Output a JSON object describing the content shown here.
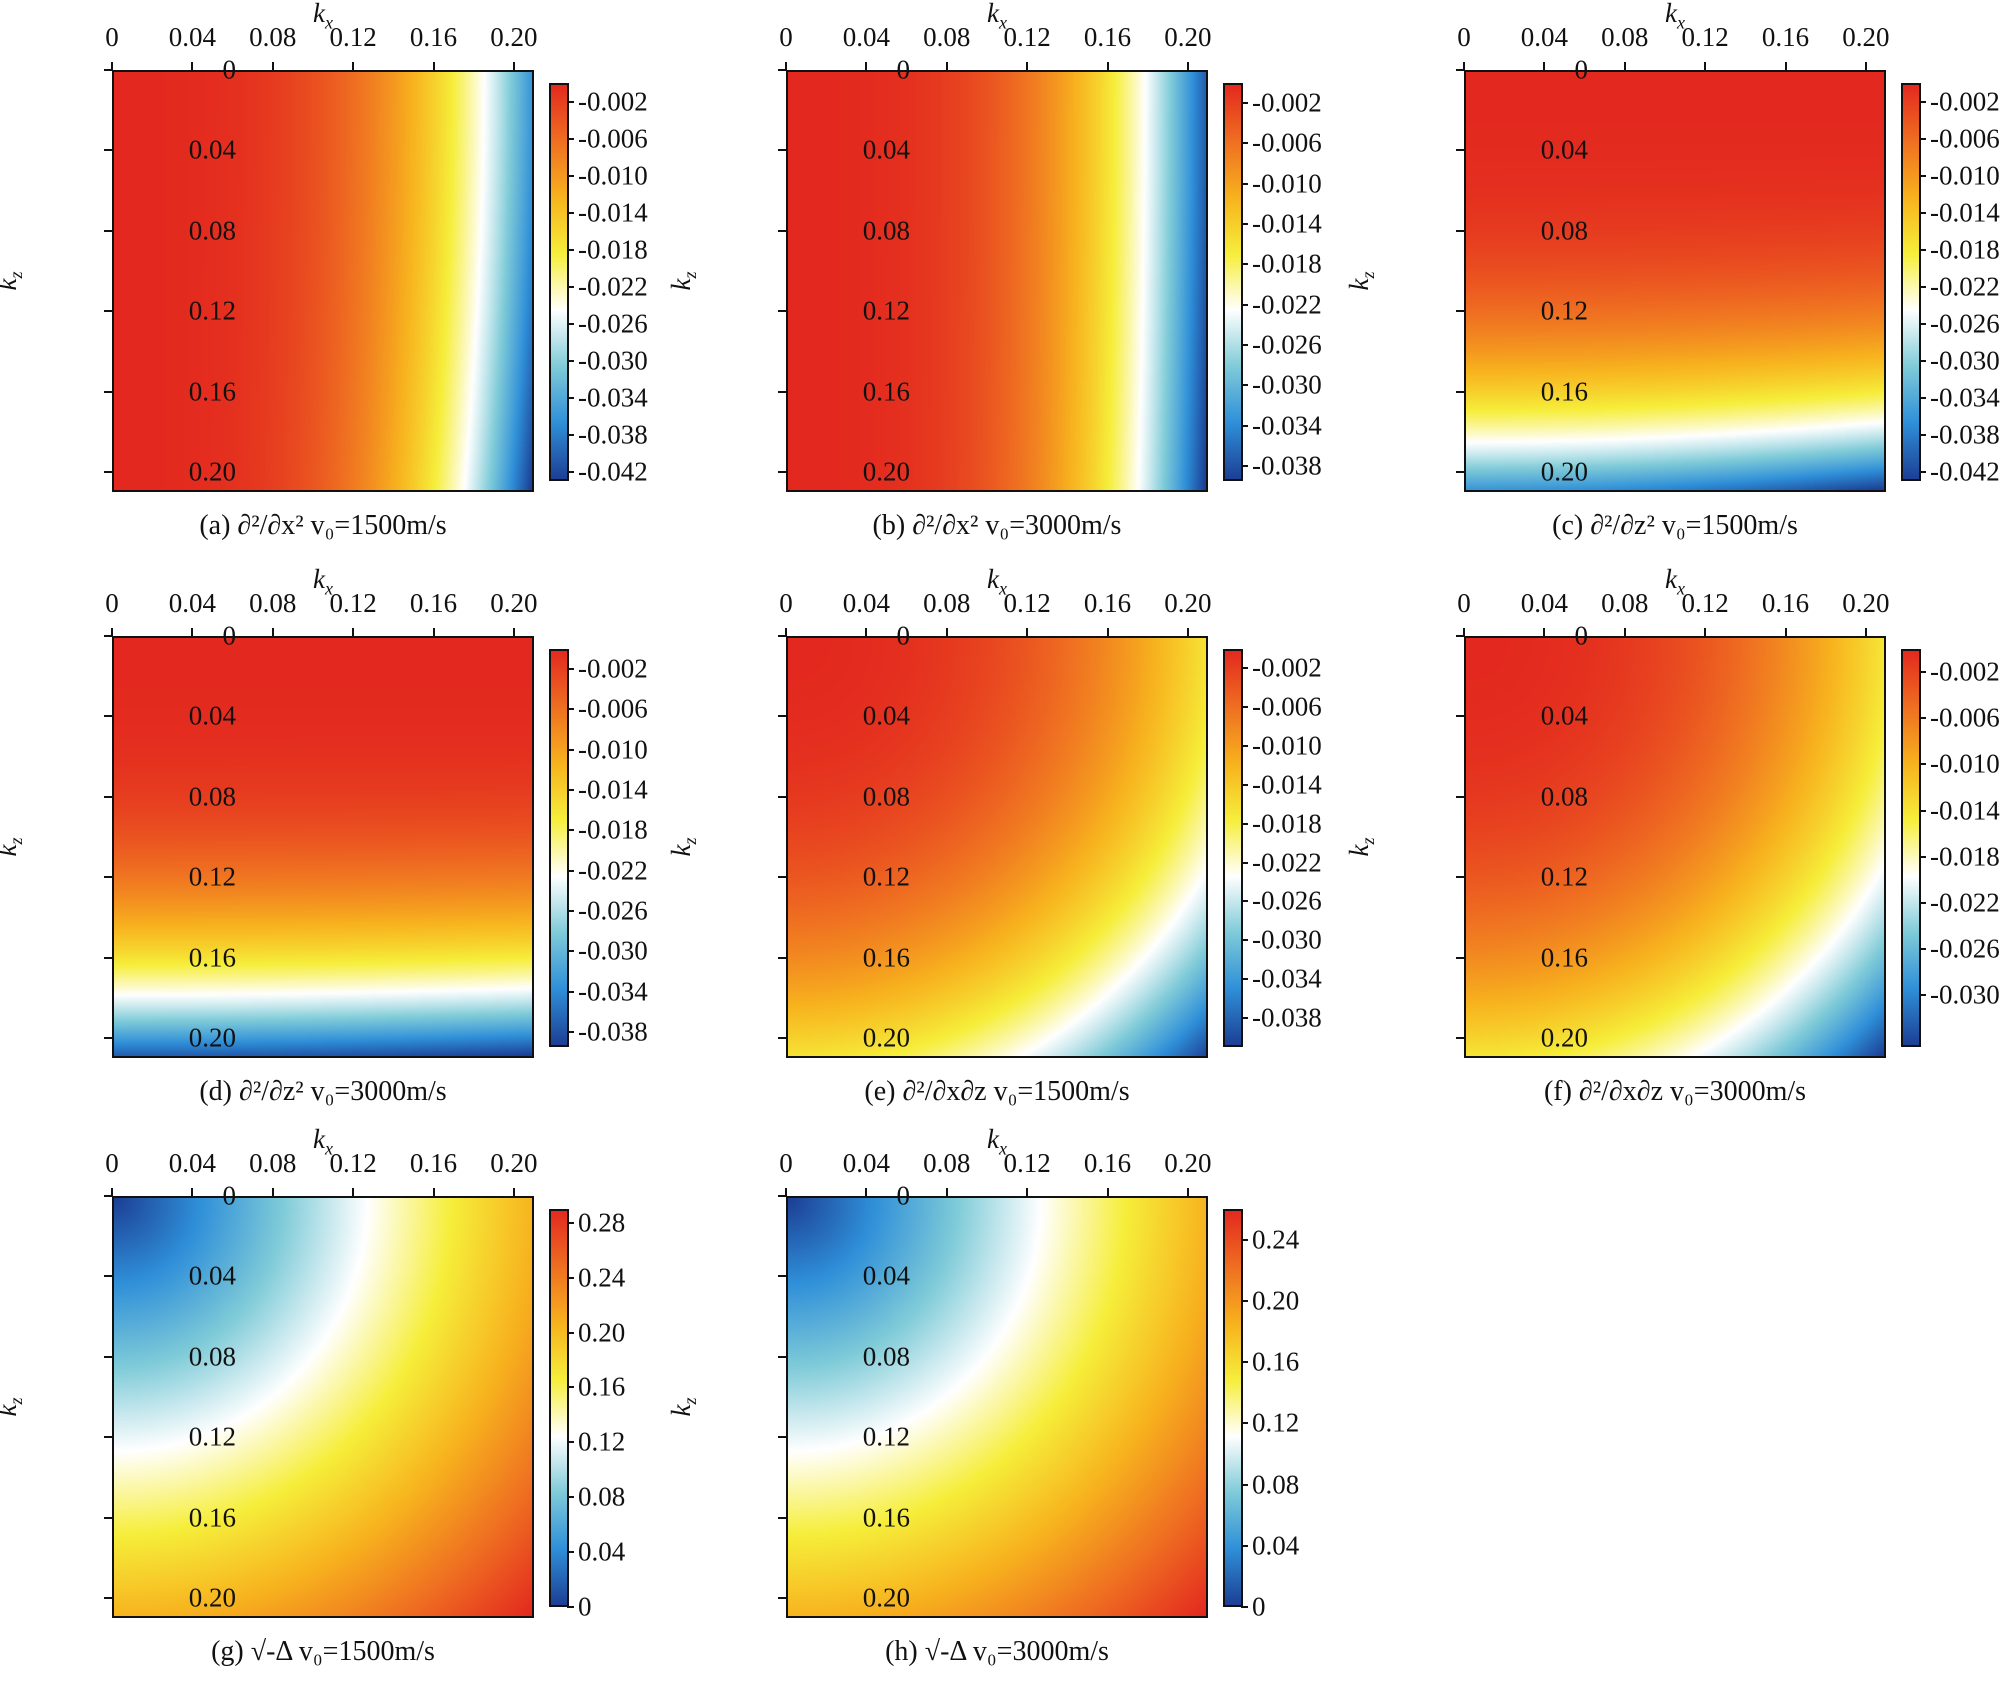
{
  "axes": {
    "x_label": "k",
    "x_sub": "x",
    "y_label": "k",
    "y_sub": "z",
    "ticks": [
      "0",
      "0.04",
      "0.08",
      "0.12",
      "0.16",
      "0.20"
    ]
  },
  "colors": {
    "colormap": [
      "#1c3f95",
      "#2f8fd8",
      "#7fcbd8",
      "#ffffff",
      "#f6ee3a",
      "#f7b21e",
      "#ef6f21",
      "#e3291f"
    ]
  },
  "chart_data": [
    {
      "id": "a",
      "type": "heatmap",
      "caption": "(a)  ∂²/∂x²    v₀=1500m/s",
      "field": "dxx",
      "strength": 0.78,
      "cb_ticks": [
        "-0.002",
        "-0.006",
        "-0.010",
        "-0.014",
        "-0.018",
        "-0.022",
        "-0.026",
        "-0.030",
        "-0.034",
        "-0.038",
        "-0.042"
      ],
      "cb_range": [
        -0.043,
        0.0
      ],
      "xlim": [
        0,
        0.21
      ],
      "ylim": [
        0,
        0.21
      ]
    },
    {
      "id": "b",
      "type": "heatmap",
      "caption": "(b)  ∂²/∂x²    v₀=3000m/s",
      "field": "dxx",
      "strength": 0.25,
      "cb_ticks": [
        "-0.002",
        "-0.006",
        "-0.010",
        "-0.014",
        "-0.018",
        "-0.022",
        "-0.026",
        "-0.030",
        "-0.034",
        "-0.038"
      ],
      "cb_range": [
        -0.0395,
        0.0
      ],
      "xlim": [
        0,
        0.21
      ],
      "ylim": [
        0,
        0.21
      ]
    },
    {
      "id": "c",
      "type": "heatmap",
      "caption": "(c)  ∂²/∂z²    v₀=1500m/s",
      "field": "dzz",
      "strength": 0.78,
      "cb_ticks": [
        "-0.002",
        "-0.006",
        "-0.010",
        "-0.014",
        "-0.018",
        "-0.022",
        "-0.026",
        "-0.030",
        "-0.034",
        "-0.038",
        "-0.042"
      ],
      "cb_range": [
        -0.043,
        0.0
      ],
      "xlim": [
        0,
        0.21
      ],
      "ylim": [
        0,
        0.21
      ]
    },
    {
      "id": "d",
      "type": "heatmap",
      "caption": "(d)  ∂²/∂z²    v₀=3000m/s",
      "field": "dzz",
      "strength": 0.25,
      "cb_ticks": [
        "-0.002",
        "-0.006",
        "-0.010",
        "-0.014",
        "-0.018",
        "-0.022",
        "-0.026",
        "-0.030",
        "-0.034",
        "-0.038"
      ],
      "cb_range": [
        -0.0395,
        0.0
      ],
      "xlim": [
        0,
        0.21
      ],
      "ylim": [
        0,
        0.21
      ]
    },
    {
      "id": "e",
      "type": "heatmap",
      "caption": "(e)  ∂²/∂x∂z    v₀=1500m/s",
      "field": "dxz",
      "strength": 0.9,
      "cb_ticks": [
        "-0.002",
        "-0.006",
        "-0.010",
        "-0.014",
        "-0.018",
        "-0.022",
        "-0.026",
        "-0.030",
        "-0.034",
        "-0.038"
      ],
      "cb_range": [
        -0.041,
        0.0
      ],
      "xlim": [
        0,
        0.21
      ],
      "ylim": [
        0,
        0.21
      ]
    },
    {
      "id": "f",
      "type": "heatmap",
      "caption": "(f)  ∂²/∂x∂z    v₀=3000m/s",
      "field": "dxz",
      "strength": 1.0,
      "cb_ticks": [
        "-0.002",
        "-0.006",
        "-0.010",
        "-0.014",
        "-0.018",
        "-0.022",
        "-0.026",
        "-0.030"
      ],
      "cb_range": [
        -0.0345,
        0.0
      ],
      "xlim": [
        0,
        0.21
      ],
      "ylim": [
        0,
        0.21
      ]
    },
    {
      "id": "g",
      "type": "heatmap",
      "caption": "(g) √-Δ   v₀=1500m/s",
      "field": "lap",
      "strength": 1.0,
      "cb_ticks": [
        "0.28",
        "0.24",
        "0.20",
        "0.16",
        "0.12",
        "0.08",
        "0.04",
        "0"
      ],
      "cb_range": [
        0.0,
        0.29
      ],
      "xlim": [
        0,
        0.21
      ],
      "ylim": [
        0,
        0.21
      ]
    },
    {
      "id": "h",
      "type": "heatmap",
      "caption": "(h) √-Δ   v₀=3000m/s",
      "field": "lap",
      "strength": 1.0,
      "cb_ticks": [
        "0.24",
        "0.20",
        "0.16",
        "0.12",
        "0.08",
        "0.04",
        "0"
      ],
      "cb_range": [
        0.0,
        0.26
      ],
      "xlim": [
        0,
        0.21
      ],
      "ylim": [
        0,
        0.21
      ]
    }
  ]
}
